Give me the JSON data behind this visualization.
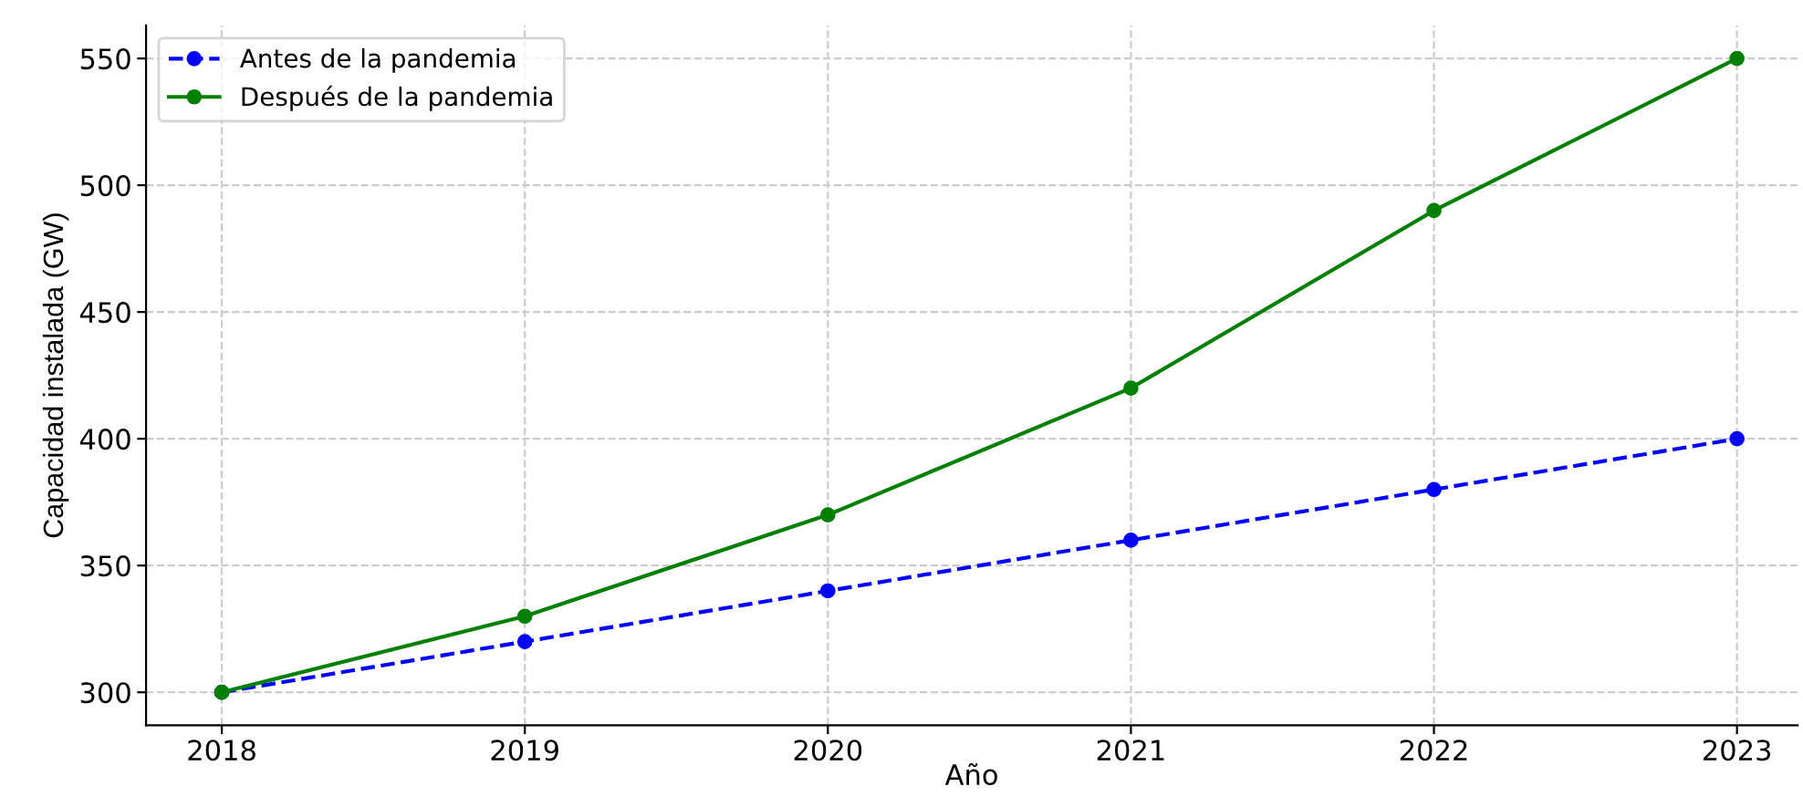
{
  "chart_data": {
    "type": "line",
    "xlabel": "Año",
    "ylabel": "Capacidad instalada (GW)",
    "x": [
      2018,
      2019,
      2020,
      2021,
      2022,
      2023
    ],
    "series": [
      {
        "name": "Antes de la pandemia",
        "color": "#0000ff",
        "values": [
          300,
          320,
          340,
          360,
          380,
          400
        ],
        "line_style": "dashed"
      },
      {
        "name": "Después de la pandemia",
        "color": "#008000",
        "values": [
          300,
          330,
          370,
          420,
          490,
          550
        ],
        "line_style": "solid"
      }
    ],
    "xlim": [
      2017.75,
      2023.2
    ],
    "xticks": [
      2018,
      2019,
      2020,
      2021,
      2022,
      2023
    ],
    "ylim": [
      287,
      563
    ],
    "yticks": [
      300,
      350,
      400,
      450,
      500,
      550
    ],
    "grid": true,
    "legend": "top left",
    "marker": "circle"
  }
}
